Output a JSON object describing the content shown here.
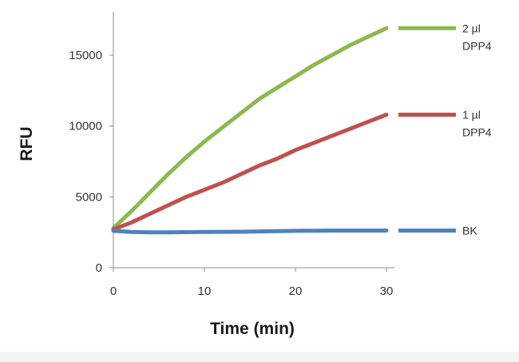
{
  "chart_data": {
    "type": "line",
    "title": "",
    "xlabel": "Time (min)",
    "ylabel": "RFU",
    "xlim": [
      0,
      30
    ],
    "ylim": [
      0,
      18000
    ],
    "x_ticks": [
      0,
      10,
      20,
      30
    ],
    "y_ticks": [
      0,
      5000,
      10000,
      15000
    ],
    "grid": false,
    "legend_position": "right, beside line ends",
    "series": [
      {
        "name": "2 µl DPP4",
        "label_lines": [
          "2 µl",
          "DPP4"
        ],
        "color": "#8cb84f",
        "x": [
          0,
          2,
          4,
          6,
          8,
          10,
          12,
          14,
          16,
          18,
          20,
          22,
          24,
          26,
          28,
          30
        ],
        "values": [
          2800,
          4000,
          5300,
          6600,
          7800,
          8900,
          9900,
          10900,
          11900,
          12700,
          13500,
          14300,
          15000,
          15700,
          16300,
          16900
        ]
      },
      {
        "name": "1 µl DPP4",
        "label_lines": [
          "1 µl",
          "DPP4"
        ],
        "color": "#c0504d",
        "x": [
          0,
          2,
          4,
          6,
          8,
          10,
          12,
          14,
          16,
          18,
          20,
          22,
          24,
          26,
          28,
          30
        ],
        "values": [
          2700,
          3200,
          3800,
          4400,
          5000,
          5500,
          6000,
          6600,
          7200,
          7700,
          8300,
          8800,
          9300,
          9800,
          10300,
          10800
        ]
      },
      {
        "name": "BK",
        "label_lines": [
          "BK"
        ],
        "color": "#4f81bd",
        "x": [
          0,
          2,
          4,
          6,
          8,
          10,
          12,
          14,
          16,
          18,
          20,
          22,
          24,
          26,
          28,
          30
        ],
        "values": [
          2600,
          2520,
          2500,
          2500,
          2510,
          2520,
          2530,
          2540,
          2560,
          2580,
          2600,
          2610,
          2620,
          2620,
          2620,
          2620
        ]
      }
    ]
  }
}
